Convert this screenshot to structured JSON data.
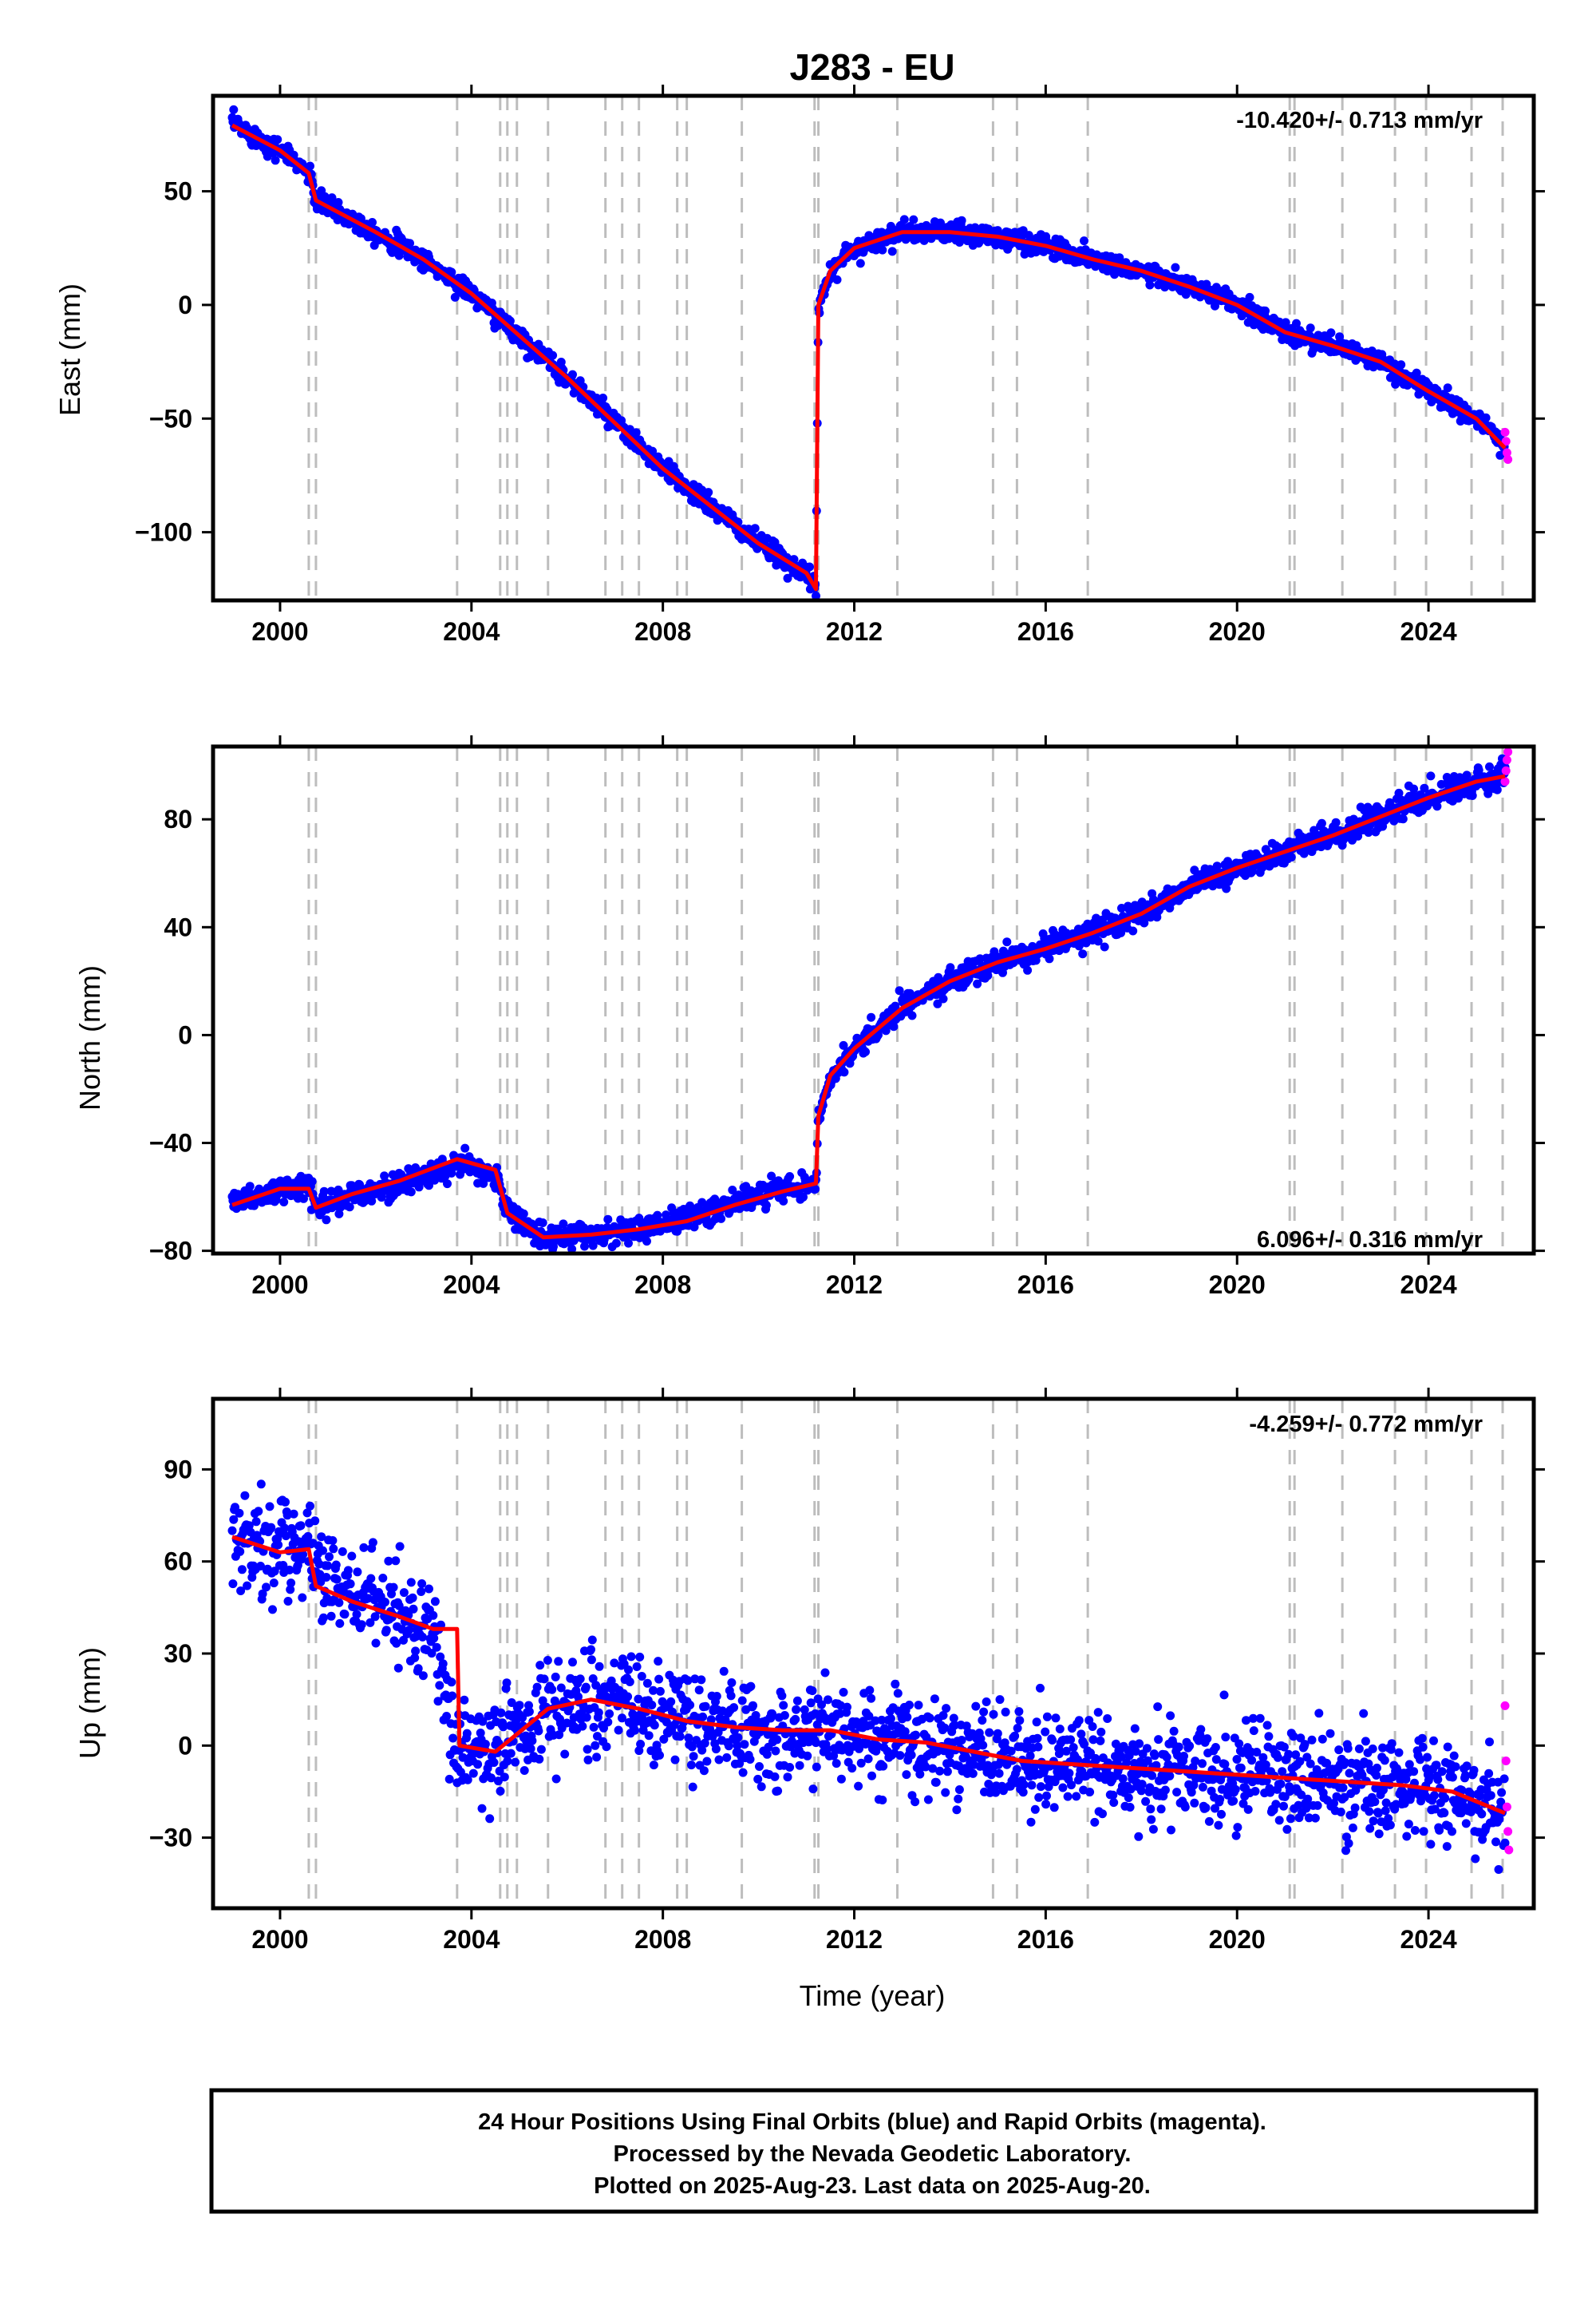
{
  "title": "J283 - EU",
  "x_label": "Time (year)",
  "footer": [
    "24 Hour Positions Using Final Orbits (blue) and Rapid Orbits (magenta).",
    "Processed by the Nevada Geodetic Laboratory.",
    "Plotted on 2025-Aug-23. Last data on 2025-Aug-20."
  ],
  "colors": {
    "final": "#0000ff",
    "rapid": "#ff00ff",
    "model": "#ff0000",
    "event_line": "#bdbdbd"
  },
  "chart_data": [
    {
      "type": "scatter",
      "ylabel": "East (mm)",
      "rate_text": "-10.420+/- 0.713 mm/yr",
      "xlim": [
        1998.6,
        2026.2
      ],
      "ylim": [
        -130,
        92
      ],
      "xticks": [
        2000,
        2004,
        2008,
        2012,
        2016,
        2020,
        2024
      ],
      "yticks": [
        50,
        0,
        -50,
        -100
      ],
      "event_lines": [
        2000.6,
        2000.75,
        2003.7,
        2004.6,
        2004.75,
        2004.95,
        2005.6,
        2006.8,
        2007.15,
        2007.5,
        2008.3,
        2008.5,
        2009.65,
        2011.17,
        2011.25,
        2012.9,
        2014.9,
        2015.4,
        2016.88,
        2021.1,
        2021.2,
        2022.2,
        2023.3,
        2023.95,
        2024.9,
        2025.55
      ],
      "series": [
        {
          "name": "Final Orbits (blue)",
          "x": [
            1999.0,
            2000.0,
            2000.6,
            2000.75,
            2002.0,
            2003.0,
            2004.0,
            2006.0,
            2008.0,
            2010.0,
            2011.0,
            2011.2,
            2011.25,
            2011.5,
            2012.0,
            2013.0,
            2014.0,
            2015.0,
            2016.0,
            2017.0,
            2018.0,
            2019.0,
            2020.0,
            2021.0,
            2022.0,
            2023.0,
            2024.0,
            2025.0,
            2025.6
          ],
          "y": [
            80,
            68,
            58,
            46,
            32,
            20,
            5,
            -32,
            -72,
            -105,
            -118,
            -126,
            0,
            15,
            25,
            32,
            32,
            30,
            26,
            20,
            15,
            8,
            0,
            -12,
            -18,
            -25,
            -38,
            -50,
            -62
          ]
        },
        {
          "name": "Rapid Orbits (magenta)",
          "x": [
            2025.6,
            2025.62,
            2025.64,
            2025.66
          ],
          "y": [
            -56,
            -60,
            -65,
            -68
          ]
        },
        {
          "name": "Model",
          "x": [
            1999.0,
            2000.0,
            2000.6,
            2000.75,
            2002.0,
            2003.0,
            2004.0,
            2006.0,
            2008.0,
            2010.0,
            2011.0,
            2011.2,
            2011.25,
            2011.5,
            2012.0,
            2013.0,
            2014.0,
            2015.0,
            2016.0,
            2017.0,
            2018.0,
            2019.0,
            2020.0,
            2021.0,
            2022.0,
            2023.0,
            2024.0,
            2025.0,
            2025.6
          ],
          "y": [
            79,
            68,
            58,
            46,
            32,
            20,
            5,
            -32,
            -72,
            -105,
            -118,
            -125,
            0,
            15,
            25,
            32,
            32,
            30,
            26,
            20,
            15,
            8,
            0,
            -12,
            -18,
            -25,
            -38,
            -50,
            -63
          ]
        }
      ]
    },
    {
      "type": "scatter",
      "ylabel": "North (mm)",
      "rate_text": "6.096+/- 0.316 mm/yr",
      "xlim": [
        1998.6,
        2026.2
      ],
      "ylim": [
        -81,
        107
      ],
      "xticks": [
        2000,
        2004,
        2008,
        2012,
        2016,
        2020,
        2024
      ],
      "yticks": [
        80,
        40,
        0,
        -40,
        -80
      ],
      "event_lines": [
        2000.6,
        2000.75,
        2003.7,
        2004.6,
        2004.75,
        2004.95,
        2005.6,
        2006.8,
        2007.15,
        2007.5,
        2008.3,
        2008.5,
        2009.65,
        2011.17,
        2011.25,
        2012.9,
        2014.9,
        2015.4,
        2016.88,
        2021.1,
        2021.2,
        2022.2,
        2023.3,
        2023.95,
        2024.9,
        2025.55
      ],
      "series": [
        {
          "name": "Final Orbits (blue)",
          "x": [
            1999.0,
            2000.0,
            2000.6,
            2000.75,
            2001.5,
            2002.5,
            2003.7,
            2004.5,
            2004.75,
            2005.5,
            2006.5,
            2007.5,
            2008.5,
            2009.5,
            2010.5,
            2011.2,
            2011.25,
            2011.5,
            2012.0,
            2013.0,
            2014.0,
            2015.0,
            2016.0,
            2017.0,
            2018.0,
            2019.0,
            2020.0,
            2021.0,
            2022.0,
            2023.0,
            2024.0,
            2025.0,
            2025.6
          ],
          "y": [
            -62,
            -58,
            -56,
            -63,
            -60,
            -55,
            -48,
            -52,
            -65,
            -75,
            -74,
            -72,
            -68,
            -62,
            -57,
            -55,
            -30,
            -15,
            -5,
            10,
            20,
            27,
            32,
            38,
            45,
            55,
            62,
            68,
            74,
            81,
            88,
            94,
            97
          ]
        },
        {
          "name": "Rapid Orbits (magenta)",
          "x": [
            2025.6,
            2025.62,
            2025.64,
            2025.66
          ],
          "y": [
            94,
            98,
            102,
            105
          ]
        },
        {
          "name": "Model",
          "x": [
            1999.0,
            2000.0,
            2000.6,
            2000.75,
            2001.5,
            2002.5,
            2003.7,
            2004.5,
            2004.75,
            2005.5,
            2006.5,
            2007.5,
            2008.5,
            2009.5,
            2010.5,
            2011.2,
            2011.25,
            2011.5,
            2012.0,
            2013.0,
            2014.0,
            2015.0,
            2016.0,
            2017.0,
            2018.0,
            2019.0,
            2020.0,
            2021.0,
            2022.0,
            2023.0,
            2024.0,
            2025.0,
            2025.6
          ],
          "y": [
            -63,
            -57,
            -57,
            -64,
            -59,
            -54,
            -46,
            -50,
            -66,
            -75,
            -74,
            -72,
            -69,
            -63,
            -58,
            -55,
            -30,
            -15,
            -5,
            10,
            20,
            27,
            32,
            38,
            45,
            55,
            62,
            68,
            74,
            81,
            88,
            94,
            96
          ]
        }
      ]
    },
    {
      "type": "scatter",
      "ylabel": "Up (mm)",
      "rate_text": "-4.259+/- 0.772 mm/yr",
      "xlim": [
        1998.6,
        2026.2
      ],
      "ylim": [
        -53,
        113
      ],
      "xticks": [
        2000,
        2004,
        2008,
        2012,
        2016,
        2020,
        2024
      ],
      "yticks": [
        90,
        60,
        30,
        0,
        -30
      ],
      "event_lines": [
        2000.6,
        2000.75,
        2003.7,
        2004.6,
        2004.75,
        2004.95,
        2005.6,
        2006.8,
        2007.15,
        2007.5,
        2008.3,
        2008.5,
        2009.65,
        2011.17,
        2011.25,
        2012.9,
        2014.9,
        2015.4,
        2016.88,
        2021.1,
        2021.2,
        2022.2,
        2023.3,
        2023.95,
        2024.9,
        2025.55
      ],
      "series": [
        {
          "name": "Final Orbits (blue)",
          "x": [
            1999.0,
            2000.0,
            2000.6,
            2000.75,
            2001.5,
            2002.5,
            2003.2,
            2003.7,
            2004.5,
            2005.6,
            2006.5,
            2007.5,
            2008.5,
            2009.5,
            2010.5,
            2011.5,
            2012.5,
            2013.5,
            2014.5,
            2015.5,
            2016.5,
            2017.5,
            2018.5,
            2019.5,
            2020.5,
            2021.5,
            2022.5,
            2023.5,
            2024.5,
            2025.6
          ],
          "y": [
            68,
            63,
            64,
            55,
            50,
            42,
            38,
            0,
            -2,
            12,
            15,
            12,
            8,
            6,
            5,
            5,
            2,
            1,
            -2,
            -5,
            -6,
            -7,
            -8,
            -9,
            -10,
            -11,
            -12,
            -13,
            -15,
            -22
          ]
        },
        {
          "name": "Rapid Orbits (magenta)",
          "x": [
            2025.6,
            2025.62,
            2025.64,
            2025.66,
            2025.68
          ],
          "y": [
            13,
            -5,
            -20,
            -28,
            -34
          ]
        },
        {
          "name": "Model",
          "x": [
            1999.0,
            2000.0,
            2000.6,
            2000.75,
            2001.5,
            2002.5,
            2003.2,
            2003.7,
            2003.75,
            2004.5,
            2005.6,
            2006.5,
            2007.5,
            2008.5,
            2009.5,
            2010.5,
            2011.5,
            2012.5,
            2013.5,
            2014.5,
            2015.5,
            2016.5,
            2017.5,
            2018.5,
            2019.5,
            2020.5,
            2021.5,
            2022.5,
            2023.5,
            2024.5,
            2025.6
          ],
          "y": [
            68,
            63,
            64,
            52,
            47,
            42,
            38,
            38,
            0,
            -2,
            12,
            15,
            12,
            8,
            6,
            5,
            5,
            2,
            1,
            -2,
            -5,
            -6,
            -7,
            -8,
            -9,
            -10,
            -11,
            -12,
            -13,
            -15,
            -22
          ]
        }
      ]
    }
  ]
}
